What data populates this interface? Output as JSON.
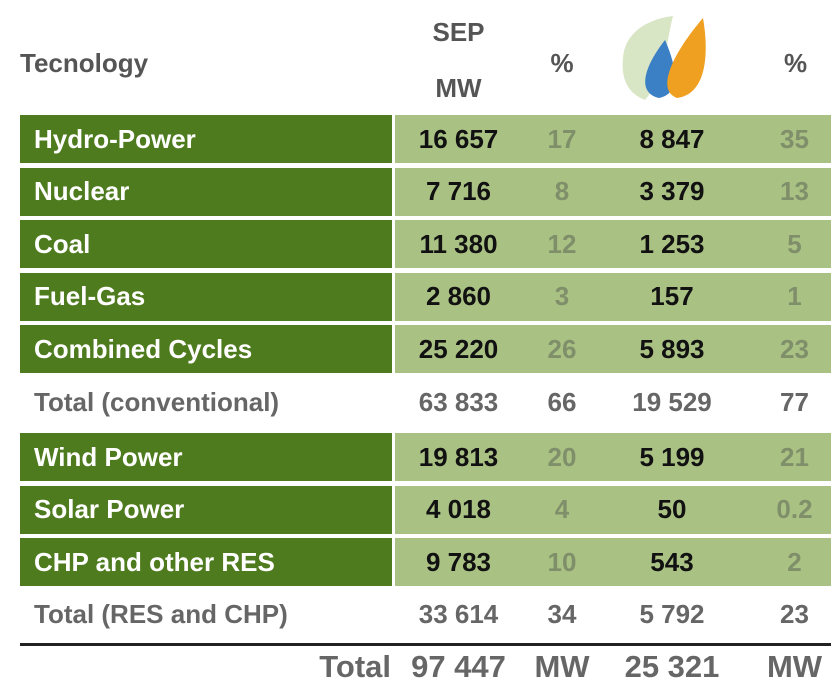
{
  "header": {
    "technology": "Tecnology",
    "sep": [
      "SEP",
      "MW"
    ],
    "pct1": "%",
    "pct2": "%"
  },
  "sections": [
    {
      "rows": [
        [
          "Hydro-Power",
          "16 657",
          "17",
          "8 847",
          "35"
        ],
        [
          "Nuclear",
          "7 716",
          "8",
          "3 379",
          "13"
        ],
        [
          "Coal",
          "11 380",
          "12",
          "1 253",
          "5"
        ],
        [
          "Fuel-Gas",
          "2 860",
          "3",
          "157",
          "1"
        ],
        [
          "Combined Cycles",
          "25 220",
          "26",
          "5 893",
          "23"
        ]
      ],
      "total": [
        "Total (conventional)",
        "63 833",
        "66",
        "19 529",
        "77"
      ]
    },
    {
      "rows": [
        [
          "Wind Power",
          "19 813",
          "20",
          "5 199",
          "21"
        ],
        [
          "Solar Power",
          "4 018",
          "4",
          "50",
          "0.2"
        ],
        [
          "CHP  and other RES",
          "9 783",
          "10",
          "543",
          "2"
        ]
      ],
      "total": [
        "Total (RES and CHP)",
        "33 614",
        "34",
        "5 792",
        "23"
      ]
    }
  ],
  "footer": [
    "Total",
    "97 447",
    "MW",
    "25 321",
    "MW"
  ]
}
